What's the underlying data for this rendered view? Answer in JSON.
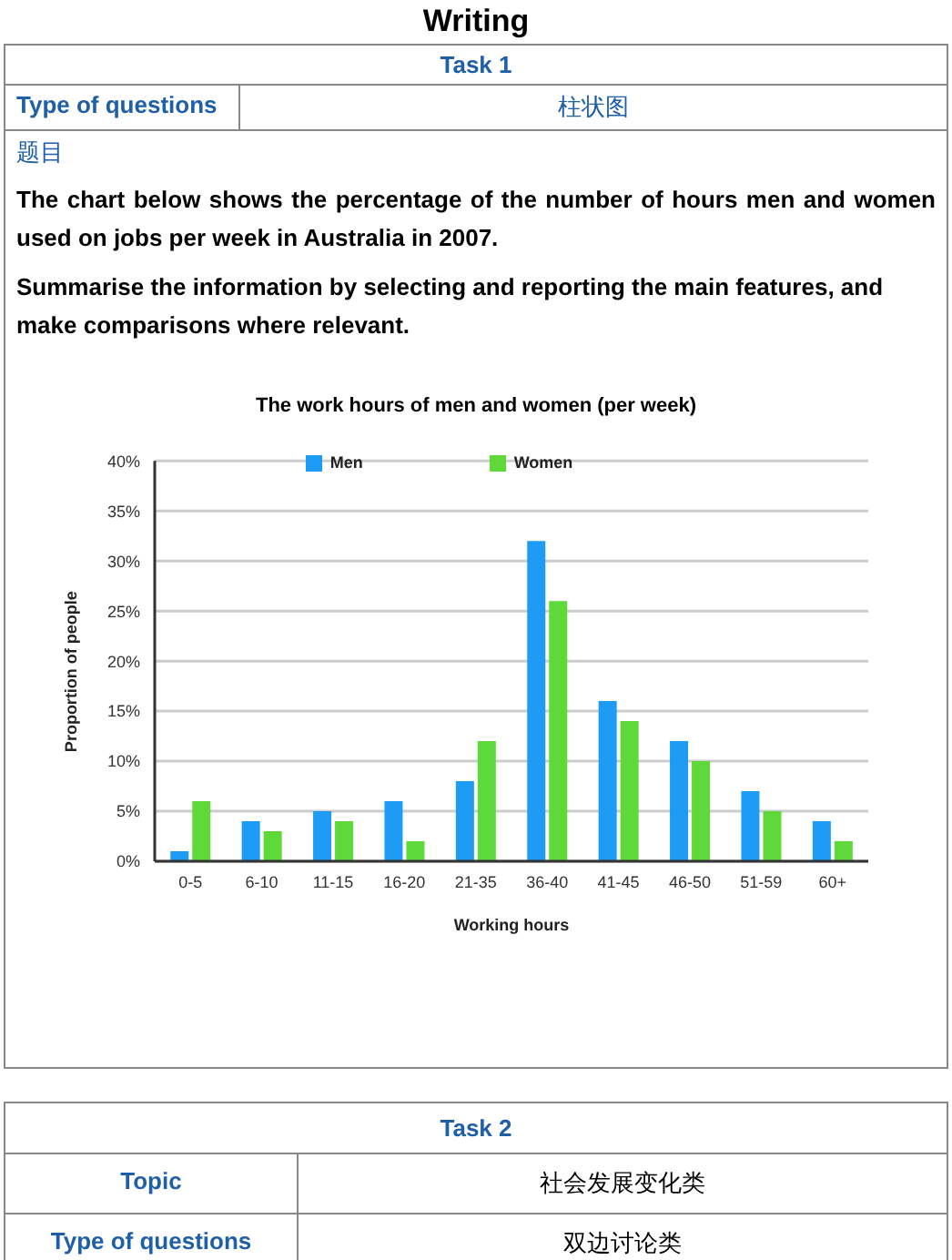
{
  "chart_data": {
    "type": "bar",
    "title": "The work hours of men and women (per week)",
    "xlabel": "Working hours",
    "ylabel": "Proportion of people",
    "categories": [
      "0-5",
      "6-10",
      "11-15",
      "16-20",
      "21-35",
      "36-40",
      "41-45",
      "46-50",
      "51-59",
      "60+"
    ],
    "series": [
      {
        "name": "Men",
        "color": "#1e9cf5",
        "values": [
          1,
          4,
          5,
          6,
          8,
          32,
          16,
          12,
          7,
          4
        ]
      },
      {
        "name": "Women",
        "color": "#5fd93a",
        "values": [
          6,
          3,
          4,
          2,
          12,
          26,
          14,
          10,
          5,
          2
        ]
      }
    ],
    "ylim": [
      0,
      40
    ],
    "yticks": [
      {
        "value": 0,
        "label": "0%"
      },
      {
        "value": 5,
        "label": "5%"
      },
      {
        "value": 10,
        "label": "10%"
      },
      {
        "value": 15,
        "label": "15%"
      },
      {
        "value": 20,
        "label": "20%"
      },
      {
        "value": 25,
        "label": "25%"
      },
      {
        "value": 30,
        "label": "30%"
      },
      {
        "value": 35,
        "label": "35%"
      },
      {
        "value": 40,
        "label": "40%"
      }
    ],
    "grid": "y",
    "legend": "top",
    "annotations": [
      "Writing",
      "Task 1",
      "Type of questions",
      "柱状图",
      "题目",
      "The chart below shows the percentage of the number of hours men and women used on jobs per week in Australia in 2007.",
      "Summarise the information by selecting and reporting the main features, and make comparisons where relevant.",
      "Task 2",
      "Topic",
      "社会发展变化类",
      "Type of questions",
      "双边讨论类"
    ]
  }
}
